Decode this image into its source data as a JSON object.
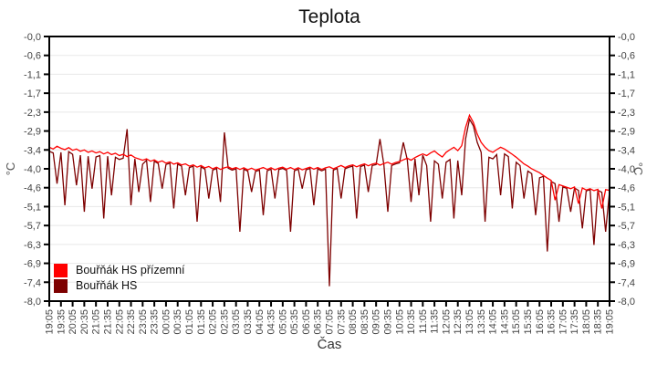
{
  "chart_data": {
    "type": "line",
    "title": "Teplota",
    "xlabel": "Čas",
    "ylabel": "°C",
    "ylim": [
      -8.0,
      0.0
    ],
    "grid": "horizontal",
    "legend_position": "bottom-left",
    "sample_interval_minutes": 10,
    "colors": {
      "background": "#ffffff",
      "frame": "#000000",
      "gridline": "#e8e8e8",
      "tick_label": "#444444"
    },
    "y_tick_labels": [
      "-0,0",
      "-0,6",
      "-1,1",
      "-1,7",
      "-2,3",
      "-2,9",
      "-3,4",
      "-4,0",
      "-4,6",
      "-5,1",
      "-5,7",
      "-6,3",
      "-6,9",
      "-7,4",
      "-8,0"
    ],
    "x_tick_labels": [
      "19:05",
      "19:35",
      "20:05",
      "20:35",
      "21:05",
      "21:35",
      "22:05",
      "22:35",
      "23:05",
      "23:35",
      "00:05",
      "00:35",
      "01:05",
      "01:35",
      "02:05",
      "02:35",
      "03:05",
      "03:35",
      "04:05",
      "04:35",
      "05:05",
      "05:35",
      "06:05",
      "06:35",
      "07:05",
      "07:35",
      "08:05",
      "08:35",
      "09:05",
      "09:35",
      "10:05",
      "10:35",
      "11:05",
      "11:35",
      "12:05",
      "12:35",
      "13:05",
      "13:35",
      "14:05",
      "14:35",
      "15:05",
      "15:35",
      "16:05",
      "16:35",
      "17:05",
      "17:35",
      "18:05",
      "18:35",
      "19:05"
    ],
    "series": [
      {
        "name": "Bouřňák HS přízemní",
        "color": "#ff0000",
        "values": [
          -3.35,
          -3.4,
          -3.32,
          -3.38,
          -3.42,
          -3.36,
          -3.44,
          -3.4,
          -3.47,
          -3.43,
          -3.5,
          -3.46,
          -3.52,
          -3.48,
          -3.55,
          -3.5,
          -3.57,
          -3.53,
          -3.6,
          -3.56,
          -3.63,
          -3.58,
          -3.66,
          -3.7,
          -3.74,
          -3.7,
          -3.77,
          -3.73,
          -3.8,
          -3.76,
          -3.83,
          -3.79,
          -3.86,
          -3.82,
          -3.88,
          -3.85,
          -3.92,
          -3.88,
          -3.95,
          -3.9,
          -3.97,
          -3.93,
          -4.0,
          -3.95,
          -4.02,
          -3.97,
          -3.94,
          -4.0,
          -3.96,
          -4.02,
          -3.97,
          -4.03,
          -3.98,
          -4.04,
          -4.0,
          -3.96,
          -4.02,
          -3.97,
          -4.03,
          -3.98,
          -3.95,
          -4.01,
          -3.96,
          -4.02,
          -3.97,
          -4.03,
          -3.99,
          -3.95,
          -4.01,
          -3.96,
          -4.02,
          -3.97,
          -3.94,
          -4.0,
          -3.95,
          -3.9,
          -3.96,
          -3.91,
          -3.88,
          -3.94,
          -3.89,
          -3.85,
          -3.91,
          -3.86,
          -3.83,
          -3.89,
          -3.84,
          -3.8,
          -3.86,
          -3.81,
          -3.78,
          -3.73,
          -3.68,
          -3.74,
          -3.66,
          -3.6,
          -3.55,
          -3.6,
          -3.52,
          -3.46,
          -3.56,
          -3.64,
          -3.5,
          -3.42,
          -3.35,
          -3.45,
          -3.3,
          -2.75,
          -2.38,
          -2.6,
          -2.95,
          -3.2,
          -3.35,
          -3.45,
          -3.5,
          -3.42,
          -3.35,
          -3.4,
          -3.48,
          -3.56,
          -3.65,
          -3.75,
          -3.85,
          -3.92,
          -4.0,
          -4.06,
          -4.12,
          -4.2,
          -4.28,
          -4.35,
          -4.95,
          -4.48,
          -4.52,
          -4.56,
          -4.6,
          -4.55,
          -5.05,
          -4.58,
          -4.64,
          -4.6,
          -4.66,
          -4.62,
          -5.2,
          -4.63,
          -4.65
        ]
      },
      {
        "name": "Bouřňák HS",
        "color": "#7d0000",
        "values": [
          -3.47,
          -3.52,
          -4.45,
          -3.5,
          -5.1,
          -3.48,
          -3.56,
          -4.5,
          -3.59,
          -5.3,
          -3.62,
          -4.6,
          -3.64,
          -3.6,
          -5.5,
          -3.62,
          -4.8,
          -3.65,
          -3.72,
          -3.68,
          -2.8,
          -5.1,
          -3.7,
          -4.7,
          -3.86,
          -3.74,
          -5.0,
          -3.77,
          -3.84,
          -4.6,
          -3.87,
          -3.83,
          -5.2,
          -3.86,
          -3.92,
          -4.8,
          -3.96,
          -3.92,
          -5.6,
          -3.94,
          -4.01,
          -4.9,
          -4.04,
          -3.99,
          -5.0,
          -2.9,
          -3.98,
          -4.04,
          -4.0,
          -5.9,
          -4.01,
          -4.07,
          -4.7,
          -4.08,
          -4.04,
          -5.4,
          -4.06,
          -4.01,
          -4.9,
          -4.02,
          -3.99,
          -4.05,
          -5.9,
          -4.06,
          -4.01,
          -4.6,
          -4.03,
          -3.99,
          -5.1,
          -4.0,
          -4.06,
          -4.01,
          -7.55,
          -4.04,
          -3.99,
          -4.9,
          -4.0,
          -3.95,
          -3.92,
          -5.5,
          -3.93,
          -3.89,
          -4.7,
          -3.9,
          -3.87,
          -3.1,
          -3.88,
          -5.3,
          -3.9,
          -3.85,
          -3.82,
          -3.2,
          -3.72,
          -5.0,
          -3.7,
          -4.8,
          -3.59,
          -3.9,
          -5.6,
          -3.76,
          -3.86,
          -4.9,
          -3.8,
          -3.72,
          -5.5,
          -3.75,
          -4.8,
          -3.1,
          -2.5,
          -2.7,
          -3.2,
          -3.5,
          -5.6,
          -3.65,
          -3.7,
          -3.57,
          -4.8,
          -3.55,
          -3.63,
          -5.2,
          -3.8,
          -3.9,
          -4.9,
          -4.07,
          -4.15,
          -5.4,
          -4.27,
          -4.23,
          -6.5,
          -4.38,
          -4.45,
          -5.6,
          -4.55,
          -4.59,
          -5.3,
          -4.58,
          -4.65,
          -5.8,
          -4.67,
          -4.63,
          -6.3,
          -4.65,
          -4.71,
          -5.9,
          -4.68
        ]
      }
    ]
  }
}
